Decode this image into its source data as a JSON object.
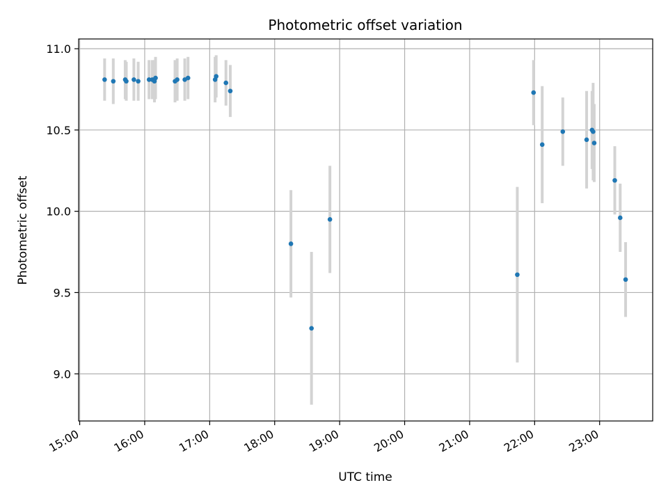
{
  "chart_data": {
    "type": "scatter",
    "title": "Photometric offset variation",
    "xlabel": "UTC time",
    "ylabel": "Photometric offset",
    "x_ticks": [
      "15:00",
      "16:00",
      "17:00",
      "18:00",
      "19:00",
      "20:00",
      "21:00",
      "22:00",
      "23:00"
    ],
    "y_ticks": [
      "9.0",
      "9.5",
      "10.0",
      "10.5",
      "11.0"
    ],
    "xlim": [
      "14:59",
      "23:49"
    ],
    "ylim": [
      8.71,
      11.06
    ],
    "grid": true,
    "colors": {
      "marker": "#1f77b4",
      "errorbar": "#d3d3d3",
      "grid": "#b0b0b0"
    },
    "points": [
      {
        "t": "15:23",
        "y": 10.81,
        "err": 0.13
      },
      {
        "t": "15:31",
        "y": 10.8,
        "err": 0.14
      },
      {
        "t": "15:42",
        "y": 10.81,
        "err": 0.12
      },
      {
        "t": "15:43",
        "y": 10.8,
        "err": 0.12
      },
      {
        "t": "15:50",
        "y": 10.81,
        "err": 0.13
      },
      {
        "t": "15:54",
        "y": 10.8,
        "err": 0.12
      },
      {
        "t": "16:04",
        "y": 10.81,
        "err": 0.12
      },
      {
        "t": "16:07",
        "y": 10.81,
        "err": 0.12
      },
      {
        "t": "16:09",
        "y": 10.8,
        "err": 0.13
      },
      {
        "t": "16:10",
        "y": 10.82,
        "err": 0.13
      },
      {
        "t": "16:28",
        "y": 10.8,
        "err": 0.13
      },
      {
        "t": "16:30",
        "y": 10.81,
        "err": 0.13
      },
      {
        "t": "16:37",
        "y": 10.81,
        "err": 0.13
      },
      {
        "t": "16:40",
        "y": 10.82,
        "err": 0.13
      },
      {
        "t": "17:05",
        "y": 10.81,
        "err": 0.14
      },
      {
        "t": "17:06",
        "y": 10.83,
        "err": 0.13
      },
      {
        "t": "17:15",
        "y": 10.79,
        "err": 0.14
      },
      {
        "t": "17:19",
        "y": 10.74,
        "err": 0.16
      },
      {
        "t": "18:15",
        "y": 9.8,
        "err": 0.33
      },
      {
        "t": "18:34",
        "y": 9.28,
        "err": 0.47
      },
      {
        "t": "18:51",
        "y": 9.95,
        "err": 0.33
      },
      {
        "t": "21:44",
        "y": 9.61,
        "err": 0.54
      },
      {
        "t": "21:59",
        "y": 10.73,
        "err": 0.2
      },
      {
        "t": "22:07",
        "y": 10.41,
        "err": 0.36
      },
      {
        "t": "22:26",
        "y": 10.49,
        "err": 0.21
      },
      {
        "t": "22:48",
        "y": 10.44,
        "err": 0.3
      },
      {
        "t": "22:53",
        "y": 10.5,
        "err": 0.24
      },
      {
        "t": "22:54",
        "y": 10.49,
        "err": 0.3
      },
      {
        "t": "22:55",
        "y": 10.42,
        "err": 0.24
      },
      {
        "t": "23:14",
        "y": 10.19,
        "err": 0.21
      },
      {
        "t": "23:19",
        "y": 9.96,
        "err": 0.21
      },
      {
        "t": "23:24",
        "y": 9.58,
        "err": 0.23
      }
    ]
  }
}
